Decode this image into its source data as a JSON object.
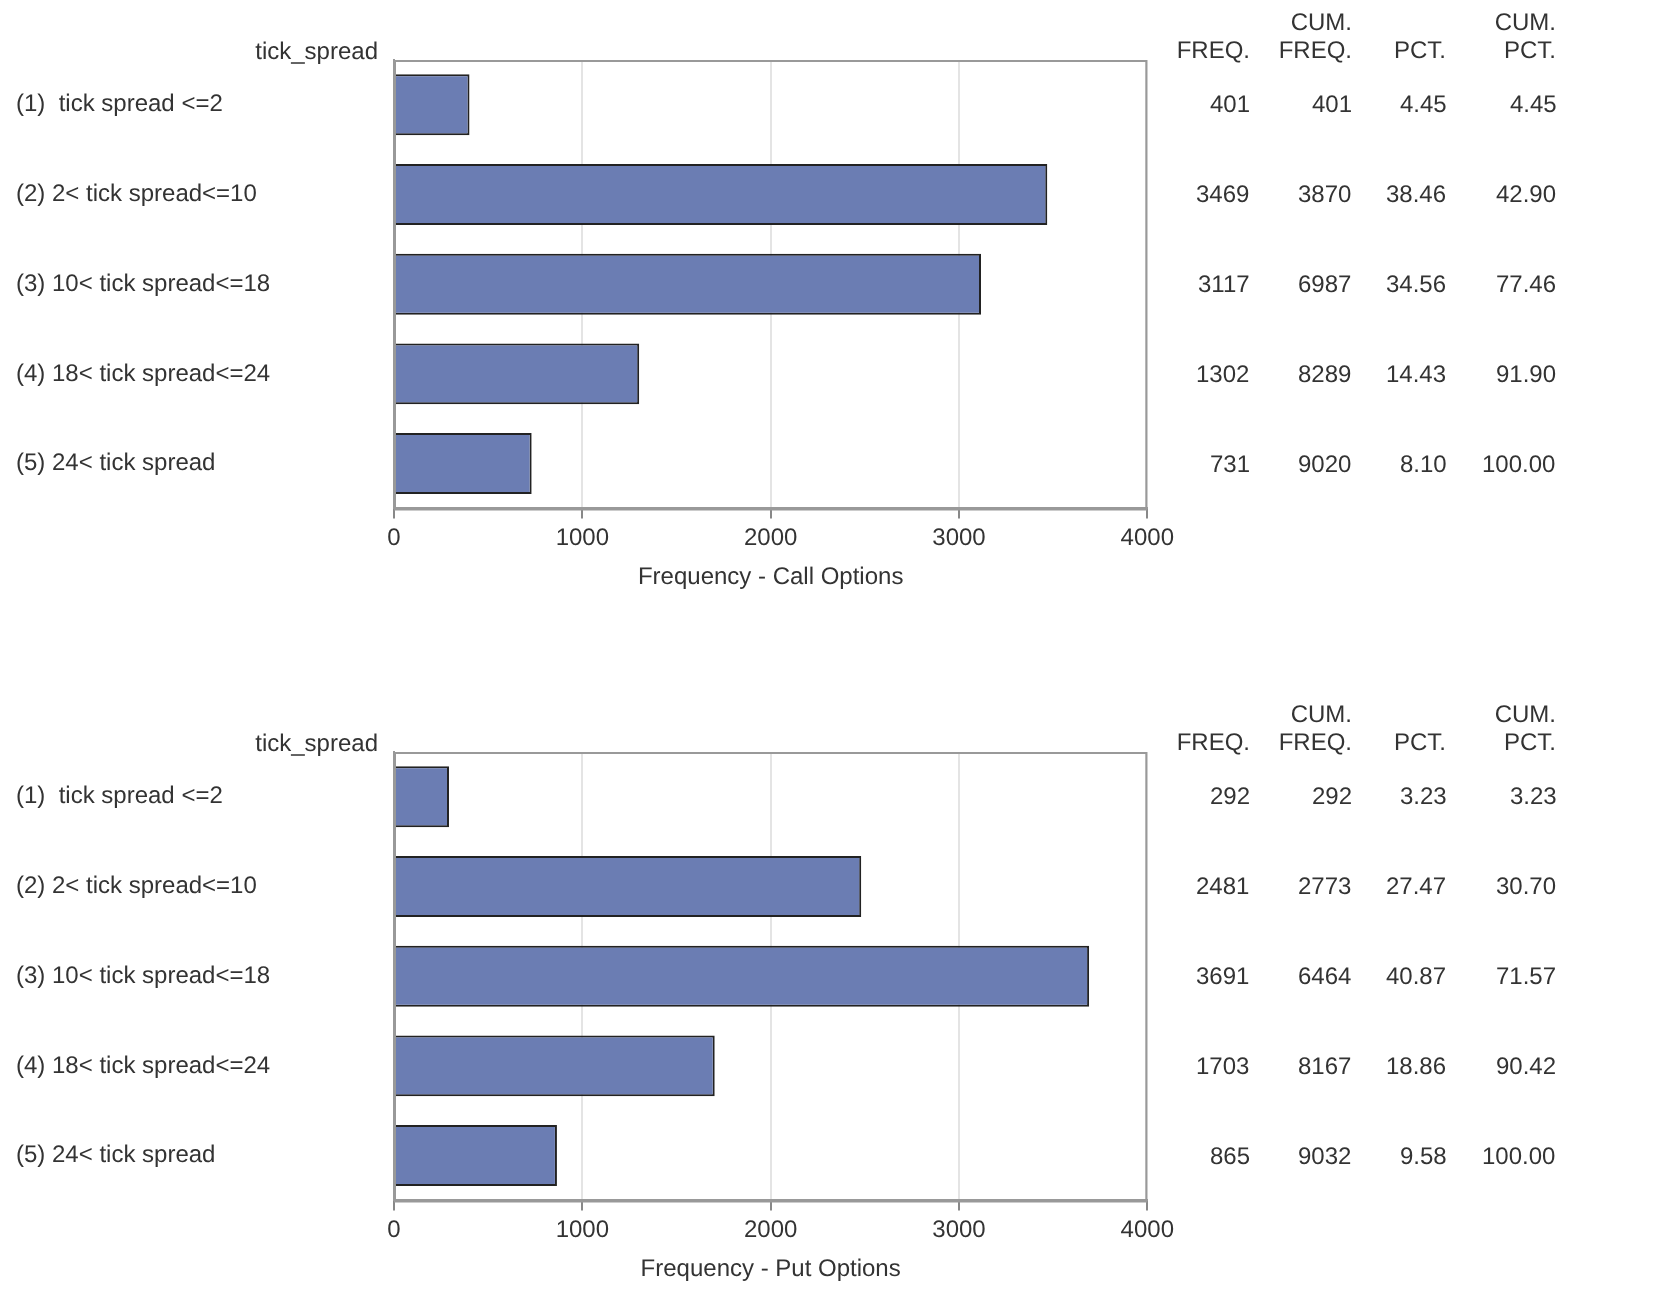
{
  "chart_data": [
    {
      "type": "bar",
      "orientation": "horizontal",
      "ylabel": "tick_spread",
      "xlabel": "Frequency - Call Options",
      "categories": [
        "(1)  tick spread <=2",
        "(2) 2< tick spread<=10",
        "(3) 10< tick spread<=18",
        "(4) 18< tick spread<=24",
        "(5) 24< tick spread"
      ],
      "values": [
        401,
        3469,
        3117,
        1302,
        731
      ],
      "color": "#6b7db3",
      "xlim": [
        0,
        4000
      ],
      "xticks": [
        0,
        1000,
        2000,
        3000,
        4000
      ],
      "grid": "x",
      "data_labels": true,
      "annotations": [
        "FREQ.",
        "CUM. FREQ.",
        "PCT.",
        "CUM. PCT.",
        "401",
        "4.45",
        "4.45",
        "3870",
        "38.46",
        "42.90",
        "6987",
        "34.56",
        "77.46",
        "8289",
        "14.43",
        "91.90",
        "9020",
        "8.10",
        "100.00"
      ]
    },
    {
      "type": "bar",
      "orientation": "horizontal",
      "ylabel": "tick_spread",
      "xlabel": "Frequency - Put Options",
      "categories": [
        "(1)  tick spread <=2",
        "(2) 2< tick spread<=10",
        "(3) 10< tick spread<=18",
        "(4) 18< tick spread<=24",
        "(5) 24< tick spread"
      ],
      "values": [
        292,
        2481,
        3691,
        1703,
        865
      ],
      "color": "#6b7db3",
      "xlim": [
        0,
        4000
      ],
      "xticks": [
        0,
        1000,
        2000,
        3000,
        4000
      ],
      "grid": "x",
      "data_labels": true,
      "annotations": [
        "FREQ.",
        "CUM. FREQ.",
        "PCT.",
        "CUM. PCT.",
        "292",
        "3.23",
        "3.23",
        "2773",
        "27.47",
        "30.70",
        "6464",
        "40.87",
        "71.57",
        "8167",
        "18.86",
        "90.42",
        "9032",
        "9.58",
        "100.00"
      ]
    }
  ]
}
